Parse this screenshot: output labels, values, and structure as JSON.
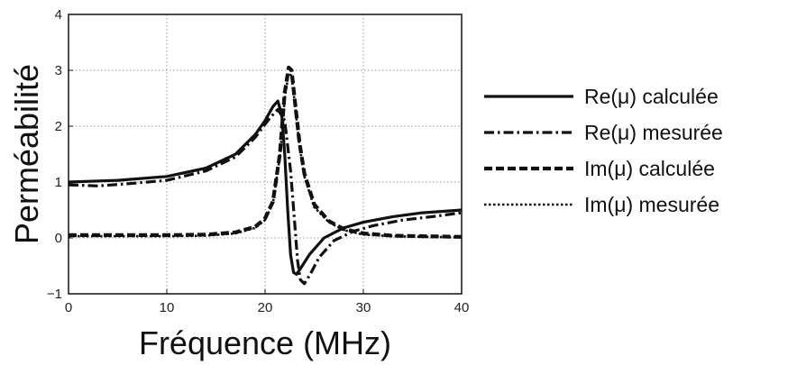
{
  "chart_data": {
    "type": "line",
    "xlabel": "Fréquence (MHz)",
    "ylabel": "Perméabilité",
    "xlim": [
      0,
      40
    ],
    "ylim": [
      -1,
      4
    ],
    "xticks": [
      "0",
      "10",
      "20",
      "30",
      "40"
    ],
    "yticks": [
      "−1",
      "0",
      "1",
      "2",
      "3",
      "4"
    ],
    "grid": true,
    "legend_position": "right",
    "series": [
      {
        "name": "Re(μ) calculée",
        "style": "solid",
        "x": [
          0,
          5,
          10,
          14,
          17,
          19,
          20,
          20.8,
          21.3,
          21.7,
          22,
          22.3,
          22.6,
          22.9,
          23.2,
          23.6,
          24.5,
          26,
          28,
          30,
          33,
          36,
          40
        ],
        "y": [
          1.0,
          1.03,
          1.1,
          1.25,
          1.5,
          1.85,
          2.1,
          2.35,
          2.45,
          2.2,
          1.5,
          0.5,
          -0.3,
          -0.62,
          -0.65,
          -0.55,
          -0.3,
          0.0,
          0.18,
          0.28,
          0.38,
          0.45,
          0.5
        ]
      },
      {
        "name": "Re(μ) mesurée",
        "style": "dashdot",
        "x": [
          0,
          3,
          6,
          10,
          14,
          17,
          19,
          20.5,
          21.3,
          22,
          22.6,
          23,
          23.3,
          23.6,
          24,
          24.6,
          25.5,
          27,
          29,
          31,
          34,
          37,
          40
        ],
        "y": [
          0.95,
          0.93,
          0.97,
          1.03,
          1.2,
          1.45,
          1.8,
          2.15,
          2.3,
          2.1,
          1.2,
          0.3,
          -0.4,
          -0.75,
          -0.82,
          -0.65,
          -0.35,
          -0.05,
          0.12,
          0.22,
          0.32,
          0.38,
          0.45
        ]
      },
      {
        "name": "Im(μ) calculée",
        "style": "dashed",
        "x": [
          0,
          5,
          10,
          14,
          17,
          19,
          20,
          20.8,
          21.5,
          22,
          22.4,
          22.7,
          23,
          23.5,
          24,
          25,
          26.5,
          28,
          30,
          33,
          36,
          40
        ],
        "y": [
          0.05,
          0.05,
          0.05,
          0.06,
          0.1,
          0.2,
          0.35,
          0.65,
          1.5,
          2.6,
          3.05,
          3.0,
          2.5,
          1.7,
          1.15,
          0.6,
          0.3,
          0.16,
          0.08,
          0.04,
          0.03,
          0.02
        ]
      },
      {
        "name": "Im(μ) mesurée",
        "style": "dotted",
        "x": [
          0,
          5,
          10,
          14,
          17,
          19,
          20,
          20.8,
          21.5,
          22,
          22.4,
          22.7,
          23,
          23.5,
          24,
          25,
          26.5,
          28,
          30,
          33,
          36,
          40
        ],
        "y": [
          0.03,
          0.03,
          0.03,
          0.04,
          0.08,
          0.18,
          0.32,
          0.62,
          1.45,
          2.5,
          2.95,
          2.9,
          2.45,
          1.65,
          1.1,
          0.55,
          0.28,
          0.14,
          0.06,
          0.03,
          0.02,
          0.01
        ]
      }
    ]
  }
}
